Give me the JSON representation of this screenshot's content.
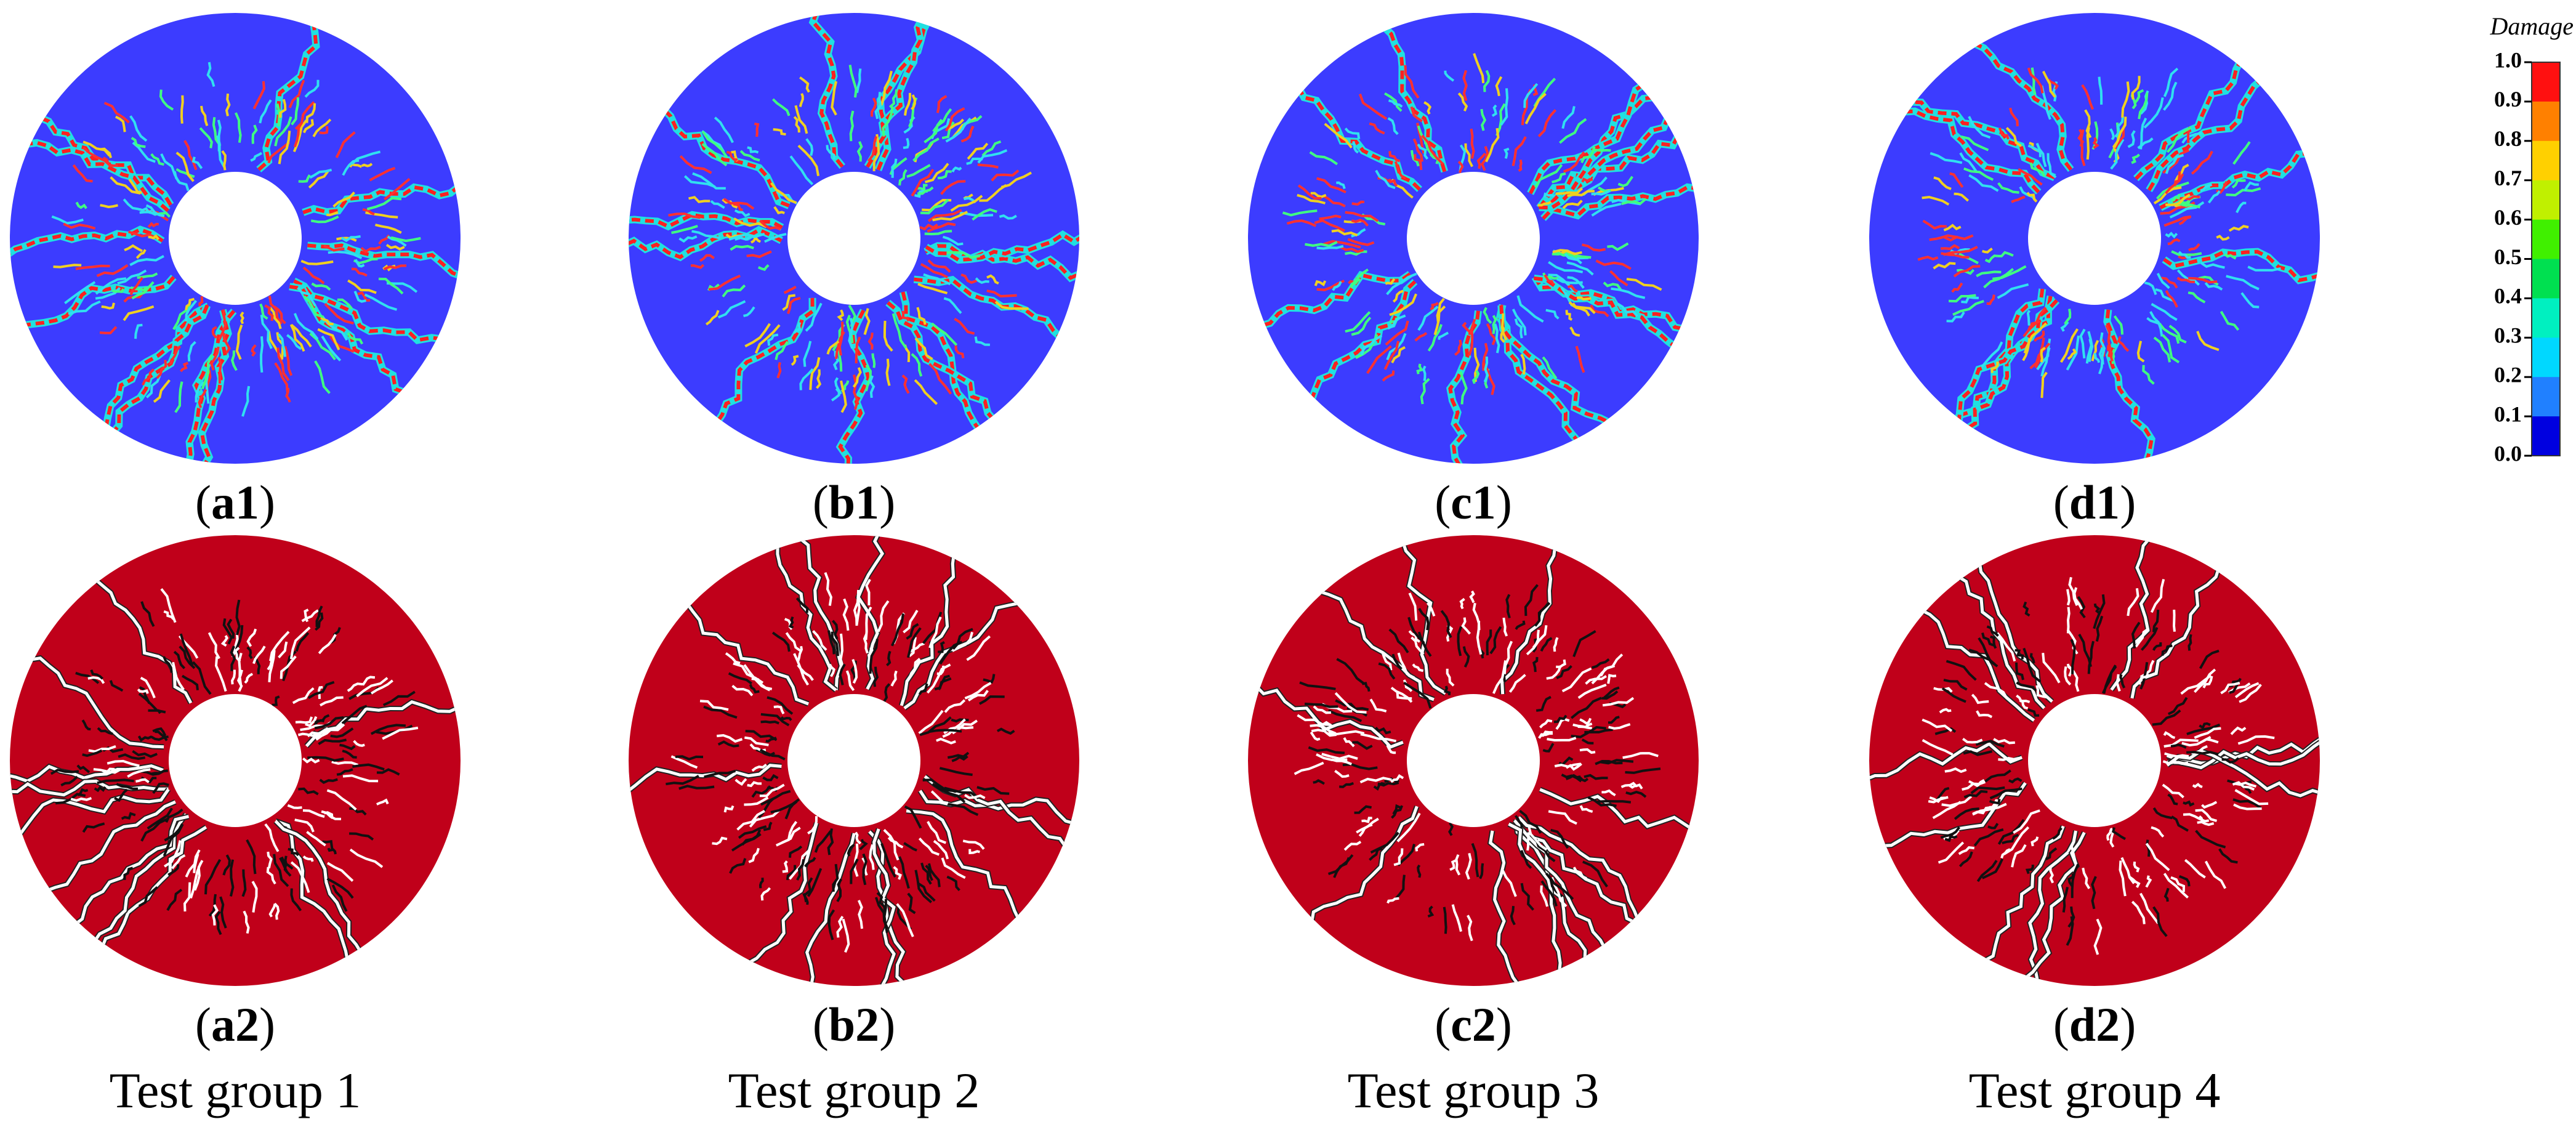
{
  "panels": [
    {
      "label": [
        "(",
        "a1",
        ")"
      ]
    },
    {
      "label": [
        "(",
        "b1",
        ")"
      ]
    },
    {
      "label": [
        "(",
        "c1",
        ")"
      ]
    },
    {
      "label": [
        "(",
        "d1",
        ")"
      ]
    },
    {
      "label": [
        "(",
        "a2",
        ")"
      ]
    },
    {
      "label": [
        "(",
        "b2",
        ")"
      ]
    },
    {
      "label": [
        "(",
        "c2",
        ")"
      ]
    },
    {
      "label": [
        "(",
        "d2",
        ")"
      ]
    }
  ],
  "groups": [
    "Test group 1",
    "Test group 2",
    "Test group 3",
    "Test group 4"
  ],
  "colorbar": {
    "title": "Damage",
    "labels": [
      "1.0",
      "0.9",
      "0.8",
      "0.7",
      "0.6",
      "0.5",
      "0.4",
      "0.3",
      "0.2",
      "0.1",
      "0.0"
    ]
  }
}
